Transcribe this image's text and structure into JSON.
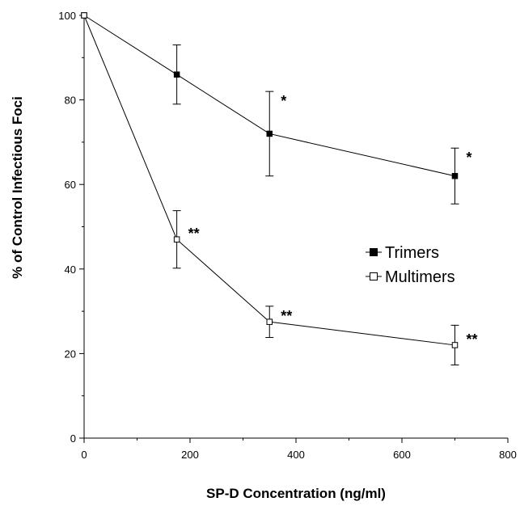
{
  "chart_data": {
    "type": "line",
    "title": "",
    "xlabel": "SP-D Concentration (ng/ml)",
    "ylabel": "% of Control Infectious Foci",
    "xlim": [
      0,
      800
    ],
    "ylim": [
      0,
      100
    ],
    "x_ticks": [
      0,
      200,
      400,
      600,
      800
    ],
    "y_ticks": [
      0,
      20,
      40,
      60,
      80,
      100
    ],
    "grid": false,
    "legend_position": "center-right",
    "series": [
      {
        "name": "Trimers",
        "marker": "filled-square",
        "color": "#000000",
        "x": [
          0,
          175,
          350,
          700
        ],
        "y": [
          100,
          86,
          72,
          62
        ],
        "err": [
          0,
          7,
          10,
          6.6
        ],
        "annotations": [
          "",
          "",
          "*",
          "*"
        ]
      },
      {
        "name": "Multimers",
        "marker": "open-square",
        "color": "#000000",
        "x": [
          0,
          175,
          350,
          700
        ],
        "y": [
          100,
          47,
          27.5,
          22
        ],
        "err": [
          0,
          6.8,
          3.7,
          4.7
        ],
        "annotations": [
          "",
          "**",
          "**",
          "**"
        ]
      }
    ]
  }
}
